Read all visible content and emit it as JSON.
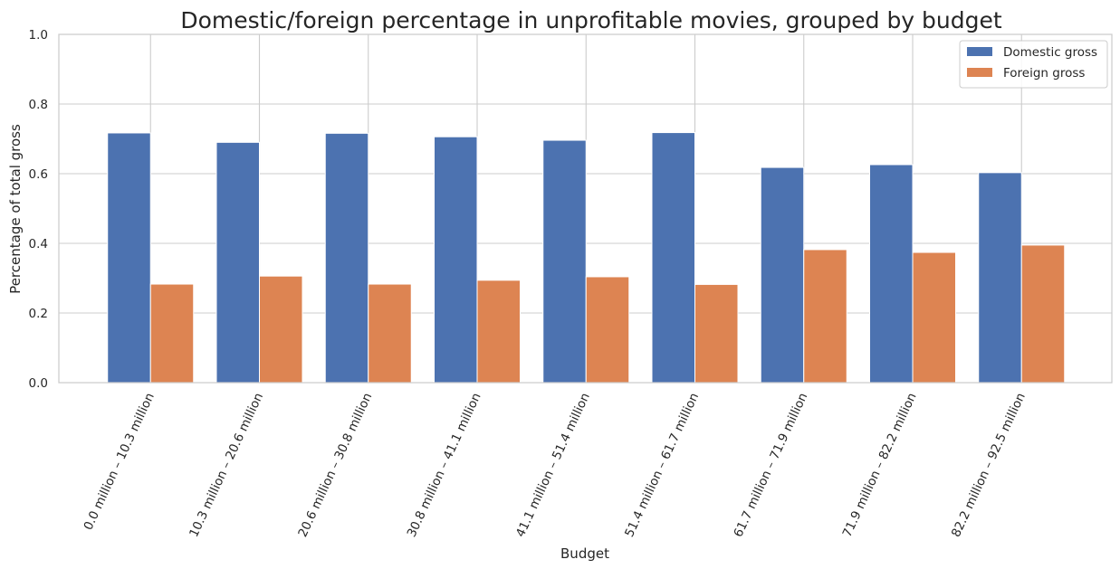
{
  "chart_data": {
    "type": "bar",
    "title": "Domestic/foreign percentage in unprofitable movies, grouped by budget",
    "xlabel": "Budget",
    "ylabel": "Percentage of total gross",
    "ylim": [
      0,
      1.0
    ],
    "yticks": [
      "0.0",
      "0.2",
      "0.4",
      "0.6",
      "0.8",
      "1.0"
    ],
    "grid": true,
    "legend_position": "top-right",
    "categories": [
      "0.0 million – 10.3 million",
      "10.3 million – 20.6 million",
      "20.6 million – 30.8 million",
      "30.8 million – 41.1 million",
      "41.1 million – 51.4 million",
      "51.4 million – 61.7 million",
      "61.7 million – 71.9 million",
      "71.9 million – 82.2 million",
      "82.2 million – 92.5 million"
    ],
    "series": [
      {
        "name": "Domestic gross",
        "color": "#4c72b0",
        "values": [
          0.717,
          0.69,
          0.716,
          0.706,
          0.696,
          0.718,
          0.618,
          0.626,
          0.603
        ]
      },
      {
        "name": "Foreign gross",
        "color": "#dd8452",
        "values": [
          0.283,
          0.306,
          0.283,
          0.294,
          0.304,
          0.282,
          0.382,
          0.374,
          0.395
        ]
      }
    ]
  }
}
